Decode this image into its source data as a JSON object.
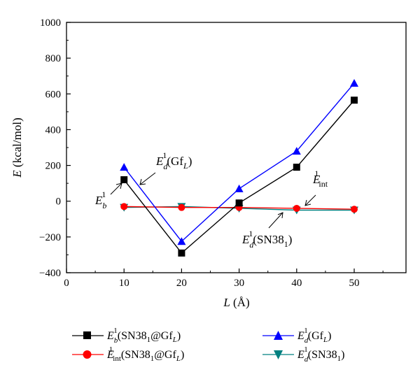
{
  "chart_data": {
    "type": "line",
    "xlabel": "L (Å)",
    "ylabel": "E (kcal/mol)",
    "xlim": [
      0,
      59
    ],
    "ylim": [
      -400,
      1000
    ],
    "xticks": [
      0,
      10,
      20,
      30,
      40,
      50
    ],
    "yticks": [
      -400,
      -200,
      0,
      200,
      400,
      600,
      800,
      1000
    ],
    "x": [
      10,
      20,
      30,
      40,
      50
    ],
    "grid": false,
    "legend_position": "bottom",
    "series": [
      {
        "name": "E_b^1(SN38_1@Gf_L)",
        "values": [
          120,
          -290,
          -10,
          190,
          565
        ],
        "color": "#000000",
        "marker": "square"
      },
      {
        "name": "E_int^1(SN38_1@Gf_L)",
        "values": [
          -30,
          -35,
          -35,
          -40,
          -45
        ],
        "color": "#ff0000",
        "marker": "circle"
      },
      {
        "name": "E_d^1(Gf_L)",
        "values": [
          190,
          -225,
          70,
          280,
          660
        ],
        "color": "#0000ff",
        "marker": "triangle-up"
      },
      {
        "name": "E_d^1(SN38_1)",
        "values": [
          -35,
          -30,
          -40,
          -50,
          -50
        ],
        "color": "#008080",
        "marker": "triangle-down"
      }
    ],
    "annotations": [
      "E_b^1",
      "E_d^1(Gf_L)",
      "E_int^1",
      "E_d^1(SN38_1)"
    ]
  }
}
